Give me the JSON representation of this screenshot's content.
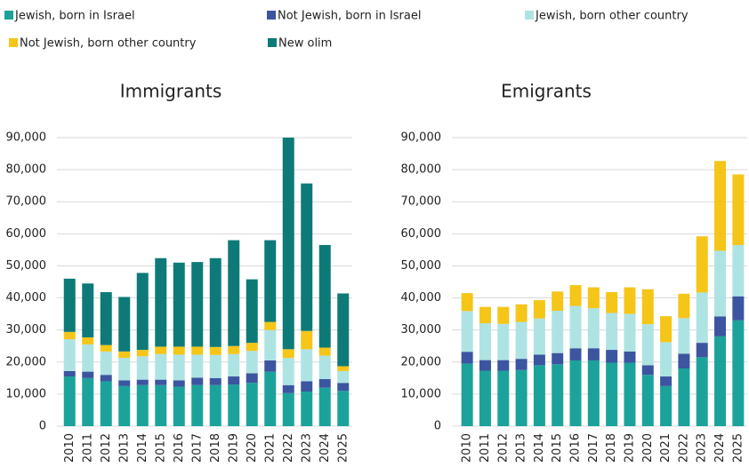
{
  "chart_data": [
    {
      "type": "stacked-bar",
      "title": "Immigrants",
      "categories": [
        "2010",
        "2011",
        "2012",
        "2013",
        "2014",
        "2015",
        "2016",
        "2017",
        "2018",
        "2019",
        "2020",
        "2021",
        "2022",
        "2023",
        "2024",
        "2025"
      ],
      "series": [
        {
          "name": "Jewish, born in Israel",
          "color": "#1ba39b",
          "values": [
            15500,
            15000,
            14000,
            12500,
            12800,
            12800,
            12300,
            12800,
            12800,
            13000,
            13500,
            17000,
            10300,
            10800,
            12000,
            11000
          ]
        },
        {
          "name": "Not Jewish, born in Israel",
          "color": "#3b55a0",
          "values": [
            1700,
            2000,
            2000,
            1800,
            1700,
            1700,
            2000,
            2300,
            2200,
            2500,
            3000,
            3500,
            2500,
            3200,
            2700,
            2500
          ]
        },
        {
          "name": "Jewish, born other country",
          "color": "#aee3e3",
          "values": [
            9900,
            8500,
            7300,
            7000,
            7300,
            8000,
            8000,
            7200,
            7200,
            7000,
            7000,
            9500,
            8500,
            10000,
            7300,
            3700
          ]
        },
        {
          "name": "Not Jewish, born other country",
          "color": "#f5c518",
          "values": [
            2300,
            2200,
            2000,
            2000,
            2000,
            2300,
            2500,
            2500,
            2500,
            2500,
            2500,
            2500,
            2700,
            5700,
            2500,
            1500
          ]
        },
        {
          "name": "New olim",
          "color": "#0d7a78",
          "values": [
            16600,
            16800,
            16500,
            17000,
            24000,
            27600,
            26200,
            26400,
            27700,
            33000,
            19800,
            25500,
            66000,
            46000,
            32000,
            22700
          ]
        }
      ],
      "ylim": [
        0,
        90000
      ],
      "yticks": [
        0,
        {
          "value": 10000,
          "label": "10,000"
        },
        {
          "value": 20000,
          "label": "20,000"
        },
        {
          "value": 30000,
          "label": "30,000"
        },
        {
          "value": 40000,
          "label": "40,000"
        },
        {
          "value": 50000,
          "label": "50,000"
        },
        {
          "value": 60000,
          "label": "60,000"
        },
        {
          "value": 70000,
          "label": "70,000"
        },
        {
          "value": 80000,
          "label": "80,000"
        },
        {
          "value": 90000,
          "label": "90,000"
        }
      ],
      "grid": true
    },
    {
      "type": "stacked-bar",
      "title": "Emigrants",
      "categories": [
        "2010",
        "2011",
        "2012",
        "2013",
        "2014",
        "2015",
        "2016",
        "2017",
        "2018",
        "2019",
        "2020",
        "2021",
        "2022",
        "2023",
        "2024",
        "2025"
      ],
      "series": [
        {
          "name": "Jewish, born in Israel",
          "color": "#1ba39b",
          "values": [
            19500,
            17300,
            17300,
            17500,
            19000,
            19300,
            20500,
            20500,
            19800,
            19800,
            16000,
            12500,
            18000,
            21500,
            28000,
            33000
          ]
        },
        {
          "name": "Not Jewish, born in Israel",
          "color": "#3b55a0",
          "values": [
            3700,
            3300,
            3300,
            3500,
            3300,
            3500,
            3800,
            3800,
            4000,
            3500,
            3000,
            3000,
            4600,
            4500,
            6200,
            7500
          ]
        },
        {
          "name": "Jewish, born other country",
          "color": "#aee3e3",
          "values": [
            12700,
            11500,
            11300,
            11500,
            11300,
            13200,
            13200,
            12500,
            11500,
            11700,
            12800,
            10700,
            11100,
            15700,
            20500,
            16000
          ]
        },
        {
          "name": "Not Jewish, born other country",
          "color": "#f5c518",
          "values": [
            5600,
            5100,
            5300,
            5500,
            5700,
            6000,
            6500,
            6500,
            6500,
            8300,
            10900,
            8100,
            7600,
            17500,
            28000,
            22000
          ]
        }
      ],
      "ylim": [
        0,
        90000
      ],
      "yticks": [
        0,
        {
          "value": 10000,
          "label": "10,000"
        },
        {
          "value": 20000,
          "label": "20,000"
        },
        {
          "value": 30000,
          "label": "30,000"
        },
        {
          "value": 40000,
          "label": "40,000"
        },
        {
          "value": 50000,
          "label": "50,000"
        },
        {
          "value": 60000,
          "label": "60,000"
        },
        {
          "value": 70000,
          "label": "70,000"
        },
        {
          "value": 80000,
          "label": "80,000"
        },
        {
          "value": 90000,
          "label": "90,000"
        }
      ],
      "grid": true
    }
  ]
}
